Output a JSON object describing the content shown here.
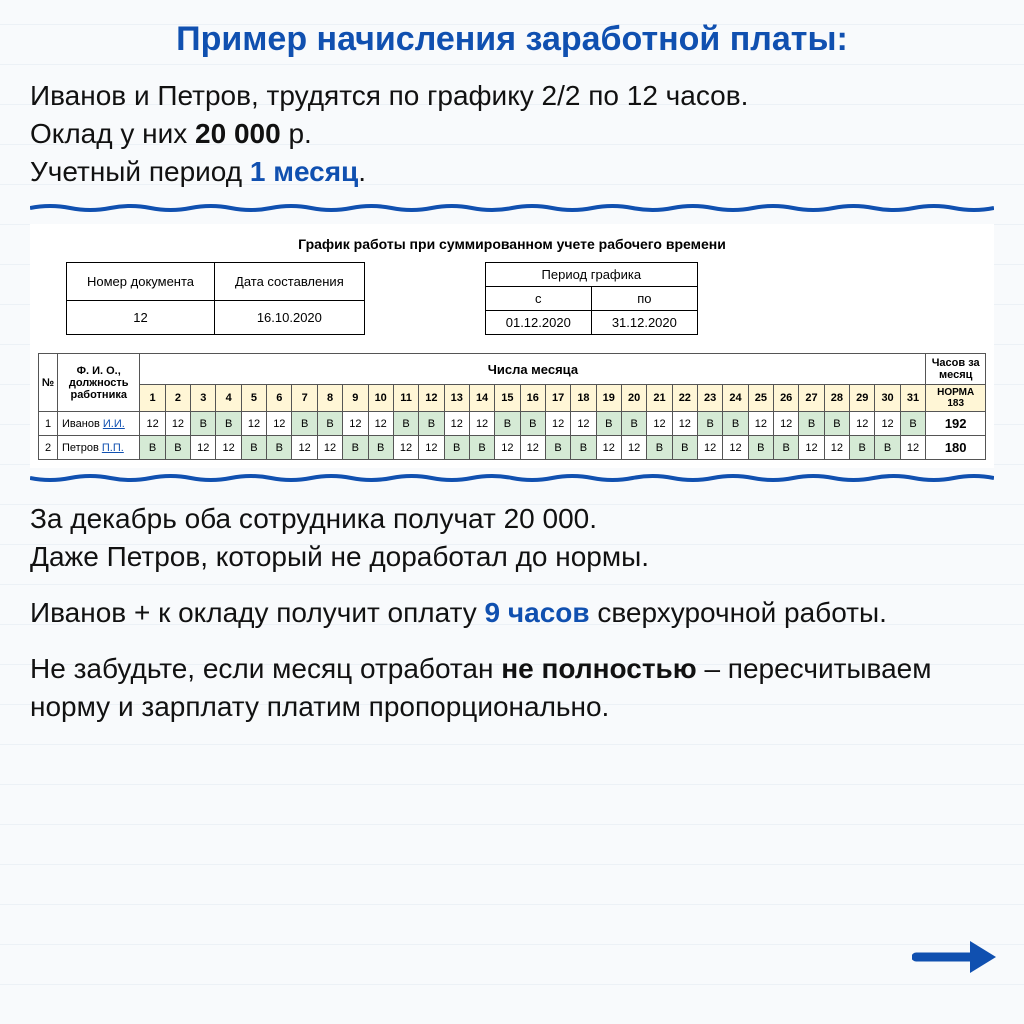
{
  "title": "Пример начисления заработной платы:",
  "intro": {
    "line1a": "Иванов и Петров, трудятся по графику 2/2 по 12 часов.",
    "line2a": "Оклад у них ",
    "salary": "20 000",
    "line2b": " р.",
    "line3a": "Учетный период ",
    "period": "1 месяц",
    "line3b": "."
  },
  "doc": {
    "heading": "График работы при суммированном учете рабочего времени",
    "doc_num_label": "Номер документа",
    "doc_num": "12",
    "doc_date_label": "Дата составления",
    "doc_date": "16.10.2020",
    "period_label": "Период графика",
    "from_label": "с",
    "to_label": "по",
    "from": "01.12.2020",
    "to": "31.12.2020"
  },
  "schedule": {
    "num_header": "№",
    "name_header": "Ф. И. О., должность работника",
    "days_header": "Числа месяца",
    "total_header": "Часов за месяц",
    "norma_label": "НОРМА",
    "norma_value": "183",
    "days": [
      "1",
      "2",
      "3",
      "4",
      "5",
      "6",
      "7",
      "8",
      "9",
      "10",
      "11",
      "12",
      "13",
      "14",
      "15",
      "16",
      "17",
      "18",
      "19",
      "20",
      "21",
      "22",
      "23",
      "24",
      "25",
      "26",
      "27",
      "28",
      "29",
      "30",
      "31"
    ],
    "rows": [
      {
        "n": "1",
        "name_prefix": "Иванов ",
        "name_link": "И.И.",
        "cells": [
          "12",
          "12",
          "В",
          "В",
          "12",
          "12",
          "В",
          "В",
          "12",
          "12",
          "В",
          "В",
          "12",
          "12",
          "В",
          "В",
          "12",
          "12",
          "В",
          "В",
          "12",
          "12",
          "В",
          "В",
          "12",
          "12",
          "В",
          "В",
          "12",
          "12",
          "В"
        ],
        "total": "192"
      },
      {
        "n": "2",
        "name_prefix": "Петров ",
        "name_link": "П.П.",
        "cells": [
          "В",
          "В",
          "12",
          "12",
          "В",
          "В",
          "12",
          "12",
          "В",
          "В",
          "12",
          "12",
          "В",
          "В",
          "12",
          "12",
          "В",
          "В",
          "12",
          "12",
          "В",
          "В",
          "12",
          "12",
          "В",
          "В",
          "12",
          "12",
          "В",
          "В",
          "12"
        ],
        "total": "180"
      }
    ]
  },
  "para1": {
    "l1": "За декабрь оба сотрудника получат 20 000.",
    "l2": "Даже Петров, который не доработал до нормы."
  },
  "para2": {
    "a": "Иванов + к окладу получит оплату ",
    "h": "9 часов",
    "b": " сверхурочной работы."
  },
  "para3": {
    "a": "Не забудьте, если месяц отработан ",
    "b": "не полностью",
    "c": " – пересчитываем норму и зарплату платим пропорционально."
  },
  "colors": {
    "accent": "#1050b0",
    "day_header_bg": "#fff6d6",
    "rest_bg": "#d5ead5"
  }
}
